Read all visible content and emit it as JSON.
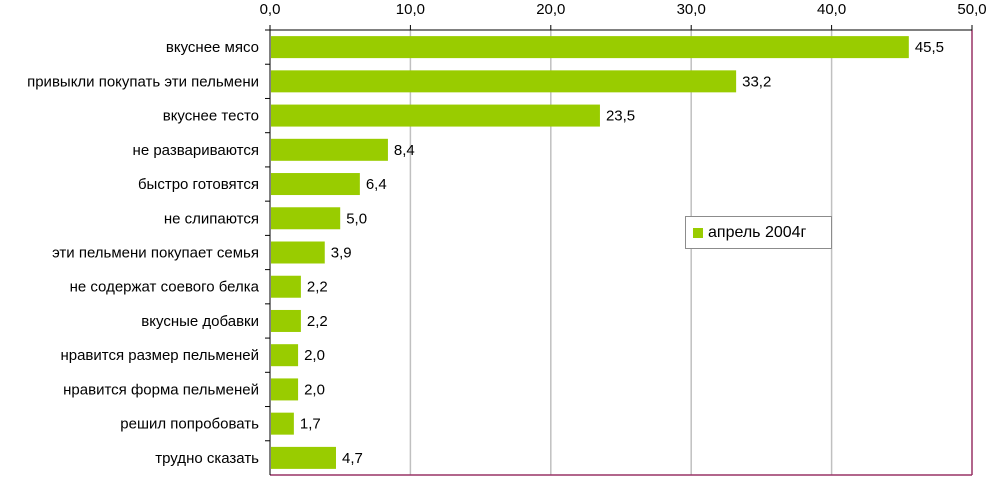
{
  "chart_data": {
    "type": "bar",
    "orientation": "horizontal",
    "categories": [
      "вкуснее мясо",
      "привыкли покупать эти пельмени",
      "вкуснее тесто",
      "не развариваются",
      "быстро готовятся",
      "не слипаются",
      "эти пельмени покупает семья",
      "не содержат соевого белка",
      "вкусные добавки",
      "нравится размер пельменей",
      "нравится форма пельменей",
      "решил попробовать",
      "трудно сказать"
    ],
    "series": [
      {
        "name": "апрель 2004г",
        "values": [
          45.5,
          33.2,
          23.5,
          8.4,
          6.4,
          5.0,
          3.9,
          2.2,
          2.2,
          2.0,
          2.0,
          1.7,
          4.7
        ],
        "data_labels": [
          "45,5",
          "33,2",
          "23,5",
          "8,4",
          "6,4",
          "5,0",
          "3,9",
          "2,2",
          "2,2",
          "2,0",
          "2,0",
          "1,7",
          "4,7"
        ],
        "color": "#99cc00"
      }
    ],
    "x_ticks": [
      "0,0",
      "10,0",
      "20,0",
      "30,0",
      "40,0",
      "50,0"
    ],
    "xlim": [
      0,
      50
    ],
    "axis_position": "top",
    "grid": true,
    "grid_color": "#c0c0c0",
    "plot_border_color": "#993366",
    "legend": {
      "position": "right-middle",
      "label": "апрель 2004г"
    }
  }
}
